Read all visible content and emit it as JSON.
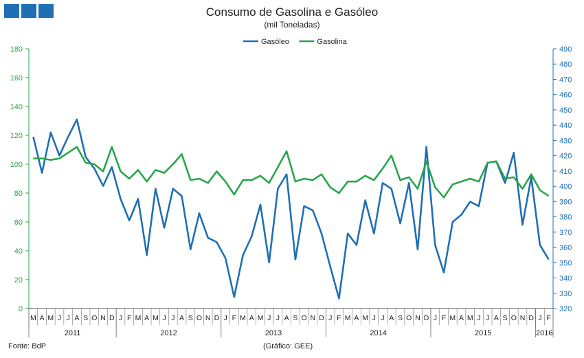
{
  "header": {
    "title": "Consumo de Gasolina e Gasóleo",
    "subtitle": "(mil Toneladas)"
  },
  "footer": {
    "source": "Fonte: BdP",
    "credit": "(Gráfico: GEE)"
  },
  "colors": {
    "gasoleo": "#1f6fb4",
    "gasolina": "#27a64a",
    "left_axis": "#27a64a",
    "right_axis": "#1f6fb4",
    "logo": "#1f6fb4"
  },
  "chart_data": {
    "type": "line",
    "legend_position": "top-center",
    "grid": false,
    "x_month_labels": [
      "M",
      "A",
      "M",
      "J",
      "J",
      "A",
      "S",
      "O",
      "N",
      "D",
      "J",
      "F",
      "M",
      "A",
      "M",
      "J",
      "J",
      "A",
      "S",
      "O",
      "N",
      "D",
      "J",
      "F",
      "M",
      "A",
      "M",
      "J",
      "J",
      "A",
      "S",
      "O",
      "N",
      "D",
      "J",
      "F",
      "M",
      "A",
      "M",
      "J",
      "J",
      "A",
      "S",
      "O",
      "N",
      "D",
      "J",
      "F",
      "M",
      "A",
      "M",
      "J",
      "J",
      "A",
      "S",
      "O",
      "N",
      "D",
      "J",
      "F"
    ],
    "x_year_groups": [
      {
        "label": "2011",
        "count": 10
      },
      {
        "label": "2012",
        "count": 12
      },
      {
        "label": "2013",
        "count": 12
      },
      {
        "label": "2014",
        "count": 12
      },
      {
        "label": "2015",
        "count": 12
      },
      {
        "label": "2016",
        "count": 2
      }
    ],
    "left_axis": {
      "label": "",
      "min": 0,
      "max": 180,
      "step": 20,
      "ticks": [
        "0",
        "20",
        "40",
        "60",
        "80",
        "100",
        "120",
        "140",
        "160",
        "180"
      ]
    },
    "right_axis": {
      "label": "",
      "min": 320,
      "max": 490,
      "step": 10,
      "ticks": [
        "320",
        "330",
        "340",
        "350",
        "360",
        "370",
        "380",
        "390",
        "400",
        "410",
        "420",
        "430",
        "440",
        "450",
        "460",
        "470",
        "480",
        "490"
      ]
    },
    "series": [
      {
        "name": "Gasóleo",
        "axis": "left",
        "values": [
          119,
          94,
          122,
          106,
          119,
          131,
          105,
          97,
          85,
          98,
          76,
          61,
          76,
          37,
          83,
          56,
          83,
          78,
          41,
          66,
          49,
          46,
          35,
          8,
          37,
          50,
          72,
          32,
          83,
          93,
          34,
          71,
          68,
          52,
          29,
          7,
          52,
          44,
          75,
          52,
          87,
          83,
          59,
          87,
          41,
          112,
          44,
          25,
          60,
          65,
          74,
          71,
          101,
          102,
          87,
          108,
          58,
          91,
          44,
          34
        ]
      },
      {
        "name": "Gasolina",
        "axis": "left",
        "values": [
          104,
          104,
          103,
          104,
          108,
          112,
          101,
          100,
          95,
          112,
          95,
          90,
          96,
          88,
          96,
          94,
          100,
          107,
          89,
          90,
          87,
          95,
          88,
          79,
          89,
          89,
          92,
          87,
          98,
          109,
          88,
          90,
          89,
          93,
          84,
          80,
          88,
          88,
          92,
          89,
          97,
          106,
          89,
          91,
          83,
          102,
          84,
          77,
          86,
          88,
          90,
          88,
          101,
          102,
          90,
          91,
          83,
          93,
          82,
          78
        ]
      }
    ]
  }
}
